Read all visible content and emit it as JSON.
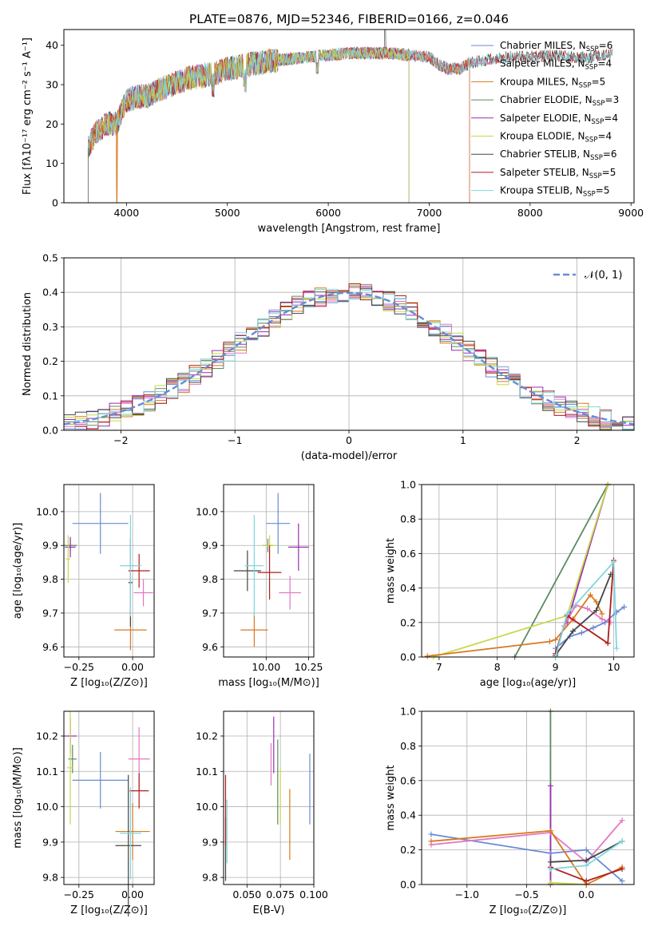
{
  "figure": {
    "title": "PLATE=0876, MJD=52346, FIBERID=0166, z=0.046",
    "colors": [
      "#6a8ad5",
      "#e377c2",
      "#d9781f",
      "#5d8a62",
      "#9b2fb3",
      "#c8d84a",
      "#444444",
      "#b01c1c",
      "#7fd6dd"
    ]
  },
  "chart_data": [
    {
      "type": "line",
      "title": "PLATE=0876, MJD=52346, FIBERID=0166, z=0.046",
      "xlabel": "wavelength [Angstrom, rest frame]",
      "ylabel": "Flux [fλ10⁻¹⁷ erg cm⁻² s⁻¹ A⁻¹]",
      "xlim": [
        3380,
        9030
      ],
      "ylim": [
        0,
        44
      ],
      "xticks": [
        "4000",
        "5000",
        "6000",
        "7000",
        "8000",
        "9000"
      ],
      "yticks": [
        "0",
        "10",
        "20",
        "30",
        "40"
      ],
      "legend_position": "top-right",
      "series": [
        {
          "name": "Chabrier MILES, N",
          "sub": "SSP",
          "suffix": "=6"
        },
        {
          "name": "Salpeter MILES, N",
          "sub": "SSP",
          "suffix": "=4"
        },
        {
          "name": "Kroupa MILES, N",
          "sub": "SSP",
          "suffix": "=5"
        },
        {
          "name": "Chabrier ELODIE, N",
          "sub": "SSP",
          "suffix": "=3"
        },
        {
          "name": "Salpeter ELODIE, N",
          "sub": "SSP",
          "suffix": "=4"
        },
        {
          "name": "Kroupa ELODIE, N",
          "sub": "SSP",
          "suffix": "=4"
        },
        {
          "name": "Chabrier STELIB, N",
          "sub": "SSP",
          "suffix": "=6"
        },
        {
          "name": "Salpeter STELIB, N",
          "sub": "SSP",
          "suffix": "=5"
        },
        {
          "name": "Kroupa STELIB, N",
          "sub": "SSP",
          "suffix": "=5"
        }
      ],
      "continuum": {
        "x": [
          3620,
          3700,
          3800,
          3900,
          4000,
          4100,
          4200,
          4300,
          4400,
          4500,
          4600,
          4700,
          4800,
          4900,
          5000,
          5200,
          5400,
          5600,
          5800,
          6000,
          6200,
          6400,
          6600,
          6800,
          7000,
          7100,
          7200,
          7300,
          7400,
          7500,
          7600,
          7800,
          8000,
          8200,
          8400,
          8600,
          8800
        ],
        "y": [
          14,
          18,
          20,
          20,
          26,
          27,
          27,
          28.5,
          29.5,
          30.5,
          31.5,
          32,
          32.5,
          33,
          34,
          35,
          36,
          36.5,
          37,
          37.5,
          38,
          38,
          38,
          37.5,
          37,
          35,
          34,
          34,
          35.5,
          36,
          36.5,
          37,
          37,
          37.5,
          37,
          37,
          38
        ]
      },
      "truncation": {
        "Chabrier ELODIE": 6800,
        "Salpeter ELODIE": 6800,
        "Kroupa ELODIE": 6800,
        "Chabrier MILES": 7400,
        "Salpeter MILES": 7400,
        "Kroupa MILES": 7400
      }
    },
    {
      "type": "bar",
      "xlabel": "(data-model)/error",
      "ylabel": "Normed distribution",
      "xlim": [
        -2.5,
        2.5
      ],
      "ylim": [
        0,
        0.5
      ],
      "xticks": [
        "−2",
        "−1",
        "0",
        "1",
        "2"
      ],
      "yticks": [
        "0.0",
        "0.1",
        "0.2",
        "0.3",
        "0.4",
        "0.5"
      ],
      "bins": {
        "start": -2.5,
        "width": 0.1,
        "count": 50
      },
      "reference": {
        "name": "𝒩(0, 1)",
        "style": "dashed",
        "color": "#6a8ad5"
      },
      "legend_position": "top-right",
      "note": "nine step histograms of the residual distribution, one per model, all close to the unit normal curve"
    },
    {
      "type": "scatter",
      "xlabel": "Z [log₁₀(Z/Z⊙)]",
      "ylabel": "age  [log₁₀(age/yr)]",
      "xlim": [
        -0.32,
        0.1
      ],
      "ylim": [
        9.57,
        10.08
      ],
      "xticks": [
        "−0.25",
        "0.00"
      ],
      "yticks": [
        "9.6",
        "9.7",
        "9.8",
        "9.9",
        "10.0"
      ],
      "points": [
        {
          "x": -0.15,
          "y": 9.965,
          "xerr": 0.13,
          "yerr": 0.09
        },
        {
          "x": 0.05,
          "y": 9.76,
          "xerr": 0.045,
          "yerr": 0.04
        },
        {
          "x": -0.01,
          "y": 9.65,
          "xerr": 0.075,
          "yerr": 0.06
        },
        {
          "x": -0.29,
          "y": 9.9,
          "xerr": 0.03,
          "yerr": 0.02
        },
        {
          "x": -0.29,
          "y": 9.895,
          "xerr": 0.025,
          "yerr": 0.03
        },
        {
          "x": -0.3,
          "y": 9.86,
          "xerr": 0.01,
          "yerr": 0.07
        },
        {
          "x": -0.01,
          "y": 9.79,
          "xerr": 0.01,
          "yerr": 0.13
        },
        {
          "x": 0.03,
          "y": 9.825,
          "xerr": 0.05,
          "yerr": 0.05
        },
        {
          "x": -0.01,
          "y": 9.84,
          "xerr": 0.05,
          "yerr": 0.15
        }
      ]
    },
    {
      "type": "scatter",
      "xlabel": "mass [log₁₀(M/M⊙)]",
      "xlim": [
        9.75,
        10.28
      ],
      "ylim": [
        9.57,
        10.08
      ],
      "xticks": [
        "10.00",
        "10.25"
      ],
      "yticks": [
        "9.6",
        "9.7",
        "9.8",
        "9.9",
        "10.0"
      ],
      "points": [
        {
          "x": 10.07,
          "y": 9.965,
          "xerr": 0.07,
          "yerr": 0.09
        },
        {
          "x": 10.14,
          "y": 9.76,
          "xerr": 0.065,
          "yerr": 0.05
        },
        {
          "x": 9.93,
          "y": 9.65,
          "xerr": 0.08,
          "yerr": 0.05
        },
        {
          "x": 10.01,
          "y": 9.9,
          "xerr": 0.03,
          "yerr": 0.02
        },
        {
          "x": 10.19,
          "y": 9.895,
          "xerr": 0.06,
          "yerr": 0.07
        },
        {
          "x": 10.02,
          "y": 9.9,
          "xerr": 0.04,
          "yerr": 0.03
        },
        {
          "x": 9.89,
          "y": 9.825,
          "xerr": 0.08,
          "yerr": 0.06
        },
        {
          "x": 10.02,
          "y": 9.82,
          "xerr": 0.07,
          "yerr": 0.08
        },
        {
          "x": 9.93,
          "y": 9.84,
          "xerr": 0.055,
          "yerr": 0.15
        }
      ]
    },
    {
      "type": "line",
      "xlabel": "age  [log₁₀(age/yr)]",
      "ylabel": "mass weight",
      "xlim": [
        6.7,
        10.35
      ],
      "ylim": [
        0,
        1
      ],
      "xticks": [
        "7",
        "8",
        "9",
        "10"
      ],
      "yticks": [
        "0.0",
        "0.2",
        "0.4",
        "0.6",
        "0.8",
        "1.0"
      ],
      "series": [
        {
          "x": [
            9.0,
            9.25,
            9.45,
            9.65,
            9.85,
            10.05,
            10.18
          ],
          "y": [
            0.05,
            0.12,
            0.14,
            0.17,
            0.2,
            0.26,
            0.29
          ]
        },
        {
          "x": [
            9.15,
            9.35,
            9.55,
            9.8,
            9.95
          ],
          "y": [
            0.18,
            0.3,
            0.28,
            0.22,
            0.2
          ]
        },
        {
          "x": [
            6.8,
            8.9,
            9.0,
            9.3,
            9.6,
            9.7,
            9.8
          ],
          "y": [
            0.005,
            0.09,
            0.1,
            0.22,
            0.36,
            0.32,
            0.25
          ]
        },
        {
          "x": [
            8.3,
            9.9
          ],
          "y": [
            0.0,
            1.0
          ]
        },
        {
          "x": [
            9.2,
            9.9
          ],
          "y": [
            0.2,
            1.0
          ]
        },
        {
          "x": [
            6.9,
            9.2,
            9.9
          ],
          "y": [
            0.0,
            0.24,
            1.0
          ]
        },
        {
          "x": [
            9.0,
            9.3,
            9.7,
            9.95
          ],
          "y": [
            0.01,
            0.15,
            0.27,
            0.48
          ]
        },
        {
          "x": [
            9.0,
            9.2,
            9.9,
            10.0
          ],
          "y": [
            0.02,
            0.24,
            0.08,
            0.56
          ]
        },
        {
          "x": [
            9.0,
            9.2,
            10.0,
            10.05
          ],
          "y": [
            0.0,
            0.25,
            0.55,
            0.05
          ]
        }
      ]
    },
    {
      "type": "scatter",
      "xlabel": "Z [log₁₀(Z/Z⊙)]",
      "ylabel": "mass [log₁₀(M/M⊙)]",
      "xlim": [
        -0.32,
        0.1
      ],
      "ylim": [
        9.78,
        10.27
      ],
      "xticks": [
        "−0.25",
        "0.00"
      ],
      "yticks": [
        "9.8",
        "9.9",
        "10.0",
        "10.1",
        "10.2"
      ],
      "points": [
        {
          "x": -0.15,
          "y": 10.075,
          "xerr": 0.13,
          "yerr": 0.08
        },
        {
          "x": 0.03,
          "y": 10.135,
          "xerr": 0.05,
          "yerr": 0.09
        },
        {
          "x": 0.0,
          "y": 9.93,
          "xerr": 0.08,
          "yerr": 0.08
        },
        {
          "x": -0.28,
          "y": 10.135,
          "xerr": 0.02,
          "yerr": 0.04
        },
        {
          "x": -0.29,
          "y": 10.2,
          "xerr": 0.03,
          "yerr": 0.05
        },
        {
          "x": -0.29,
          "y": 10.11,
          "xerr": 0.015,
          "yerr": 0.16
        },
        {
          "x": -0.02,
          "y": 9.89,
          "xerr": 0.06,
          "yerr": 0.2
        },
        {
          "x": 0.03,
          "y": 10.045,
          "xerr": 0.045,
          "yerr": 0.05
        },
        {
          "x": -0.01,
          "y": 9.925,
          "xerr": 0.05,
          "yerr": 0.13
        }
      ]
    },
    {
      "type": "scatter",
      "xlabel": "E(B-V)",
      "xlim": [
        0.0325,
        0.1
      ],
      "ylim": [
        9.78,
        10.27
      ],
      "xticks": [
        "0.050",
        "0.075",
        "0.100"
      ],
      "yticks": [
        "9.8",
        "9.9",
        "10.0",
        "10.1",
        "10.2"
      ],
      "points": [
        {
          "x": 0.097,
          "y": 10.05,
          "xerr": 0,
          "yerr": 0.1
        },
        {
          "x": 0.068,
          "y": 10.12,
          "xerr": 0,
          "yerr": 0.06
        },
        {
          "x": 0.082,
          "y": 9.95,
          "xerr": 0,
          "yerr": 0.1
        },
        {
          "x": 0.073,
          "y": 10.07,
          "xerr": 0,
          "yerr": 0.12
        },
        {
          "x": 0.07,
          "y": 10.175,
          "xerr": 0,
          "yerr": 0.08
        },
        {
          "x": 0.075,
          "y": 10.03,
          "xerr": 0,
          "yerr": 0.08
        },
        {
          "x": 0.034,
          "y": 9.88,
          "xerr": 0,
          "yerr": 0.09
        },
        {
          "x": 0.034,
          "y": 9.99,
          "xerr": 0,
          "yerr": 0.1
        },
        {
          "x": 0.035,
          "y": 9.93,
          "xerr": 0,
          "yerr": 0.09
        }
      ]
    },
    {
      "type": "line",
      "xlabel": "Z [log₁₀(Z/Z⊙)]",
      "ylabel": "mass weight",
      "xlim": [
        -1.38,
        0.4
      ],
      "ylim": [
        0,
        1
      ],
      "xticks": [
        "−1.0",
        "−0.5",
        "0.0"
      ],
      "yticks": [
        "0.0",
        "0.2",
        "0.4",
        "0.6",
        "0.8",
        "1.0"
      ],
      "series": [
        {
          "x": [
            -1.3,
            -0.3,
            0.0,
            0.3
          ],
          "y": [
            0.29,
            0.18,
            0.2,
            0.02
          ]
        },
        {
          "x": [
            -1.3,
            -0.3,
            0.0,
            0.3
          ],
          "y": [
            0.23,
            0.3,
            0.13,
            0.37
          ]
        },
        {
          "x": [
            -1.3,
            -0.3,
            0.0,
            0.3
          ],
          "y": [
            0.25,
            0.31,
            0.0,
            0.1
          ]
        },
        {
          "x": [
            -0.3,
            -0.3
          ],
          "y": [
            0.0,
            1.0
          ]
        },
        {
          "x": [
            -0.3,
            -0.3
          ],
          "y": [
            0.0,
            0.57
          ]
        },
        {
          "x": [
            -0.3,
            0.0
          ],
          "y": [
            0.01,
            0.0
          ]
        },
        {
          "x": [
            -0.3,
            0.0,
            0.3
          ],
          "y": [
            0.13,
            0.14,
            0.25
          ]
        },
        {
          "x": [
            -0.3,
            0.0,
            0.3
          ],
          "y": [
            0.1,
            0.02,
            0.09
          ]
        },
        {
          "x": [
            -0.3,
            0.0,
            0.3
          ],
          "y": [
            0.09,
            0.11,
            0.25
          ]
        }
      ]
    }
  ]
}
